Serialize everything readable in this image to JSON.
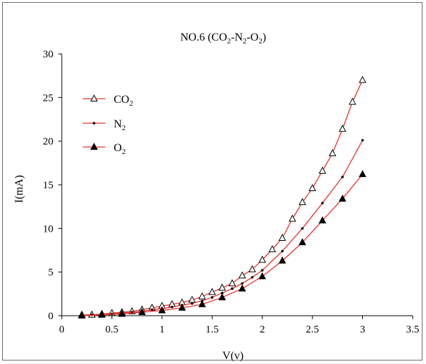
{
  "chart_data": {
    "type": "line",
    "title": "NO.6 (CO",
    "title_parts": [
      {
        "text": "NO.6 (CO",
        "sub": false
      },
      {
        "text": "2",
        "sub": true
      },
      {
        "text": "-N",
        "sub": false
      },
      {
        "text": "2",
        "sub": true
      },
      {
        "text": "-O",
        "sub": false
      },
      {
        "text": "2",
        "sub": true
      },
      {
        "text": ")",
        "sub": false
      }
    ],
    "xlabel": "V(v)",
    "ylabel": "I(mA)",
    "xlim": [
      0,
      3.5
    ],
    "ylim": [
      0,
      30
    ],
    "xticks": [
      "0",
      "0.5",
      "1",
      "1.5",
      "2",
      "2.5",
      "3",
      "3.5"
    ],
    "yticks": [
      "0",
      "5",
      "10",
      "15",
      "20",
      "25",
      "30"
    ],
    "grid": false,
    "legend_position": "top-left",
    "colors": {
      "line": "#e8302a",
      "marker": "#000000",
      "frame": "#6b6b6b"
    },
    "series": [
      {
        "name": "CO2",
        "name_main": "CO",
        "name_sub": "2",
        "marker": "open-triangle",
        "x": [
          0.2,
          0.3,
          0.4,
          0.5,
          0.6,
          0.7,
          0.8,
          0.9,
          1.0,
          1.1,
          1.2,
          1.3,
          1.4,
          1.5,
          1.6,
          1.7,
          1.8,
          1.9,
          2.0,
          2.1,
          2.2,
          2.3,
          2.4,
          2.5,
          2.6,
          2.7,
          2.8,
          2.9,
          3.0
        ],
        "y": [
          0.1,
          0.1,
          0.2,
          0.3,
          0.4,
          0.5,
          0.7,
          0.9,
          1.1,
          1.3,
          1.5,
          1.8,
          2.2,
          2.7,
          3.2,
          3.7,
          4.6,
          5.3,
          6.4,
          7.6,
          8.9,
          11.1,
          13.0,
          14.6,
          16.6,
          18.6,
          21.4,
          24.5,
          27.0
        ]
      },
      {
        "name": "N2",
        "name_main": "N",
        "name_sub": "2",
        "marker": "dot",
        "x": [
          0.2,
          0.3,
          0.4,
          0.5,
          0.6,
          0.7,
          0.8,
          0.9,
          1.0,
          1.1,
          1.2,
          1.3,
          1.4,
          1.5,
          1.6,
          1.7,
          1.8,
          1.9,
          2.0,
          2.2,
          2.4,
          2.6,
          2.8,
          3.0
        ],
        "y": [
          0.0,
          0.1,
          0.1,
          0.2,
          0.3,
          0.4,
          0.5,
          0.7,
          0.8,
          1.0,
          1.2,
          1.4,
          1.7,
          2.1,
          2.6,
          3.1,
          3.7,
          4.4,
          5.2,
          7.4,
          10.0,
          12.9,
          15.9,
          20.1
        ]
      },
      {
        "name": "O2",
        "name_main": "O",
        "name_sub": "2",
        "marker": "filled-triangle",
        "x": [
          0.2,
          0.4,
          0.6,
          0.8,
          1.0,
          1.2,
          1.4,
          1.6,
          1.8,
          2.0,
          2.2,
          2.4,
          2.6,
          2.8,
          3.0
        ],
        "y": [
          0.0,
          0.1,
          0.2,
          0.4,
          0.6,
          0.9,
          1.3,
          2.1,
          3.1,
          4.5,
          6.3,
          8.4,
          10.9,
          13.4,
          16.2
        ]
      }
    ]
  }
}
